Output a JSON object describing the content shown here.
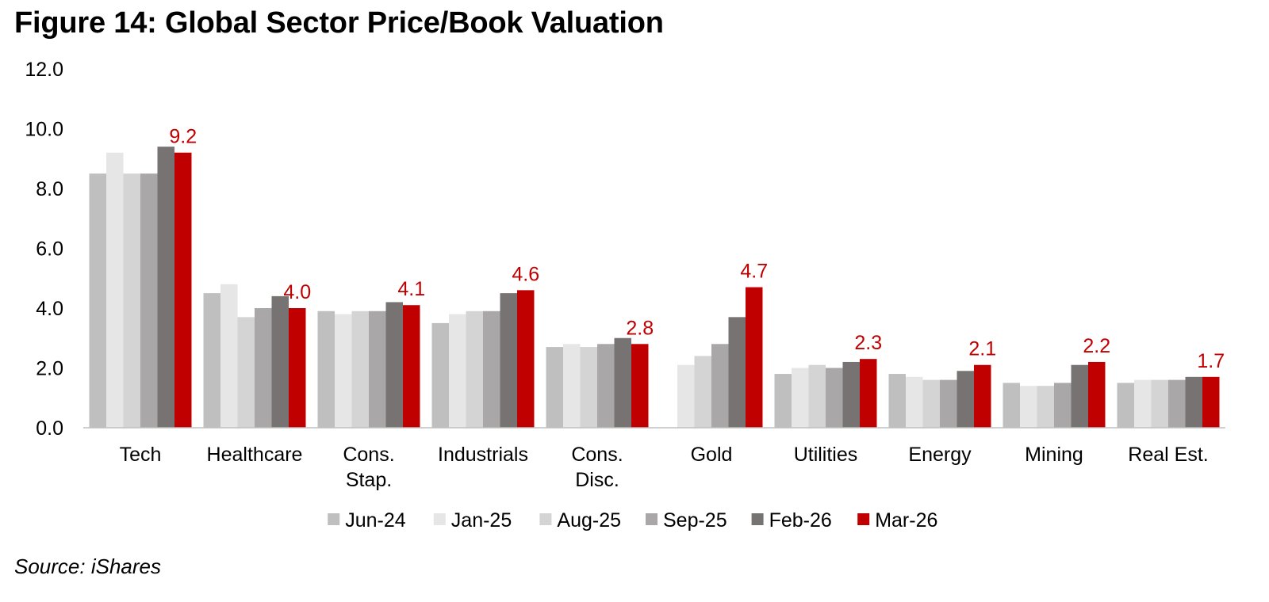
{
  "title": "Figure 14: Global Sector Price/Book Valuation",
  "source": "Source: iShares",
  "chart_data": {
    "type": "bar",
    "title": "Figure 14: Global Sector Price/Book Valuation",
    "xlabel": "",
    "ylabel": "",
    "ylim": [
      0,
      12
    ],
    "yticks": [
      "0.0",
      "2.0",
      "4.0",
      "6.0",
      "8.0",
      "10.0",
      "12.0"
    ],
    "grid": false,
    "legend_position": "bottom",
    "categories": [
      [
        "Tech"
      ],
      [
        "Healthcare"
      ],
      [
        "Cons.",
        "Stap."
      ],
      [
        "Industrials"
      ],
      [
        "Cons.",
        "Disc."
      ],
      [
        "Gold"
      ],
      [
        "Utilities"
      ],
      [
        "Energy"
      ],
      [
        "Mining"
      ],
      [
        "Real Est."
      ]
    ],
    "series": [
      {
        "name": "Jun-24",
        "color": "#bfbfbf",
        "values": [
          8.5,
          4.5,
          3.9,
          3.5,
          2.7,
          null,
          1.8,
          1.8,
          1.5,
          1.5
        ]
      },
      {
        "name": "Jan-25",
        "color": "#e6e6e6",
        "values": [
          9.2,
          4.8,
          3.8,
          3.8,
          2.8,
          2.1,
          2.0,
          1.7,
          1.4,
          1.6
        ]
      },
      {
        "name": "Aug-25",
        "color": "#d4d4d4",
        "values": [
          8.5,
          3.7,
          3.9,
          3.9,
          2.7,
          2.4,
          2.1,
          1.6,
          1.4,
          1.6
        ]
      },
      {
        "name": "Sep-25",
        "color": "#a9a7a7",
        "values": [
          8.5,
          4.0,
          3.9,
          3.9,
          2.8,
          2.8,
          2.0,
          1.6,
          1.5,
          1.6
        ]
      },
      {
        "name": "Feb-26",
        "color": "#777373",
        "values": [
          9.4,
          4.4,
          4.2,
          4.5,
          3.0,
          3.7,
          2.2,
          1.9,
          2.1,
          1.7
        ]
      },
      {
        "name": "Mar-26",
        "color": "#c00000",
        "values": [
          9.2,
          4.0,
          4.1,
          4.6,
          2.8,
          4.7,
          2.3,
          2.1,
          2.2,
          1.7
        ]
      }
    ],
    "data_labels": {
      "series": "Mar-26",
      "color": "#c00000",
      "labels": [
        "9.2",
        "4.0",
        "4.1",
        "4.6",
        "2.8",
        "4.7",
        "2.3",
        "2.1",
        "2.2",
        "1.7"
      ]
    }
  }
}
